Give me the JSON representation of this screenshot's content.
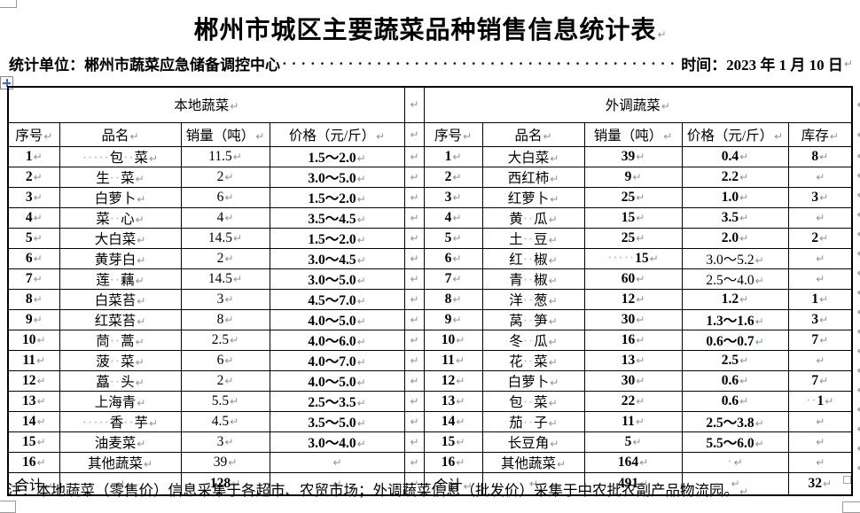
{
  "page": {
    "title": "郴州市城区主要蔬菜品种销售信息统计表",
    "subtitle_left": "统计单位：郴州市蔬菜应急储备调控中心",
    "subtitle_dots": "··············································",
    "subtitle_right": "时间：2023 年 1 月 10 日",
    "note": "注：本地蔬菜（零售价）信息采集于各超市、农贸市场；外调蔬菜信息（批发价）采集于中农批农副产品物流园。"
  },
  "marks": {
    "pilcrow": "↵"
  },
  "table": {
    "local": {
      "title": "本地蔬菜",
      "headers": [
        "序号",
        "品名",
        "销量（吨）",
        "价格（元/斤）"
      ],
      "rows": [
        {
          "no": "1",
          "name": "·····包··菜",
          "qty": "11.5",
          "price": "1.5～2.0"
        },
        {
          "no": "2",
          "name": "生··菜",
          "qty": "2",
          "price": "3.0～5.0"
        },
        {
          "no": "3",
          "name": "白萝卜",
          "qty": "6",
          "price": "1.5～2.0"
        },
        {
          "no": "4",
          "name": "菜··心",
          "qty": "4",
          "price": "3.5～4.5"
        },
        {
          "no": "5",
          "name": "大白菜",
          "qty": "14.5",
          "price": "1.5～2.0"
        },
        {
          "no": "6",
          "name": "黄芽白",
          "qty": "2",
          "price": "3.0～4.5"
        },
        {
          "no": "7",
          "name": "莲··藕",
          "qty": "14.5",
          "price": "3.0～5.0"
        },
        {
          "no": "8",
          "name": "白菜苔",
          "qty": "3",
          "price": "4.5～7.0"
        },
        {
          "no": "9",
          "name": "红菜苔",
          "qty": "8",
          "price": "4.0～5.0"
        },
        {
          "no": "10",
          "name": "茼··蒿",
          "qty": "2.5",
          "price": "4.0～6.0"
        },
        {
          "no": "11",
          "name": "菠··菜",
          "qty": "6",
          "price": "4.0～7.0"
        },
        {
          "no": "12",
          "name": "藠··头",
          "qty": "2",
          "price": "4.0～5.0"
        },
        {
          "no": "13",
          "name": "上海青",
          "qty": "5.5",
          "price": "2.5～3.5"
        },
        {
          "no": "14",
          "name": "·····香··芋",
          "qty": "4.5",
          "price": "3.5～5.0"
        },
        {
          "no": "15",
          "name": "油麦菜",
          "qty": "3",
          "price": "3.0～4.0"
        },
        {
          "no": "16",
          "name": "其他蔬菜",
          "qty": "39",
          "price": ""
        }
      ],
      "total": {
        "label": "合计",
        "name": "",
        "qty": "128",
        "price": ""
      }
    },
    "external": {
      "title": "外调蔬菜",
      "headers": [
        "序号",
        "品名",
        "销量（吨）",
        "价格（元/斤）",
        "库存"
      ],
      "rows": [
        {
          "no": "1",
          "name": "大白菜",
          "qty": "39",
          "price": "0.4",
          "stock": "8"
        },
        {
          "no": "2",
          "name": "西红柿",
          "qty": "9",
          "price": "2.2",
          "stock": ""
        },
        {
          "no": "3",
          "name": "红萝卜",
          "qty": "25",
          "price": "1.0",
          "stock": "3"
        },
        {
          "no": "4",
          "name": "黄··瓜",
          "qty": "15",
          "price": "3.5",
          "stock": ""
        },
        {
          "no": "5",
          "name": "土··豆",
          "qty": "25",
          "price": "2.0",
          "stock": "2"
        },
        {
          "no": "6",
          "name": "红··椒",
          "qty": "·····15",
          "price": "3.0～5.2",
          "stock": "",
          "price_regular": true
        },
        {
          "no": "7",
          "name": "青··椒",
          "qty": "60",
          "price": "2.5～4.0",
          "stock": "",
          "price_regular": true
        },
        {
          "no": "8",
          "name": "洋··葱",
          "qty": "12",
          "price": "1.2",
          "stock": "1"
        },
        {
          "no": "9",
          "name": "莴··笋",
          "qty": "30",
          "price": "1.3～1.6",
          "stock": "3"
        },
        {
          "no": "10",
          "name": "冬··瓜",
          "qty": "16",
          "price": "0.6～0.7",
          "stock": "7"
        },
        {
          "no": "11",
          "name": "花··菜",
          "qty": "13",
          "price": "2.5",
          "stock": ""
        },
        {
          "no": "12",
          "name": "白萝卜",
          "qty": "30",
          "price": "0.6",
          "stock": "7"
        },
        {
          "no": "13",
          "name": "包··菜",
          "qty": "22",
          "price": "0.6",
          "stock": "··1"
        },
        {
          "no": "14",
          "name": "茄··子",
          "qty": "11",
          "price": "2.5～3.8",
          "stock": ""
        },
        {
          "no": "15",
          "name": "长豆角",
          "qty": "5",
          "price": "5.5～6.0",
          "stock": ""
        },
        {
          "no": "16",
          "name": "其他蔬菜",
          "qty": "164",
          "price": "·",
          "stock": ""
        }
      ],
      "total": {
        "label": "合计",
        "name": "",
        "qty": "491",
        "price": "",
        "stock": "32"
      }
    }
  }
}
